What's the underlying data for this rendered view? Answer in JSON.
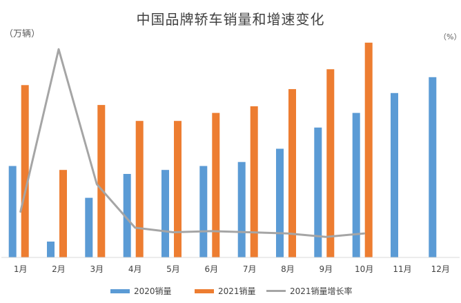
{
  "chart_data": {
    "type": "bar",
    "title": "中国品牌轿车销量和增速变化",
    "ylabel_left": "（万辆）",
    "ylabel_right": "（%）",
    "categories": [
      "1月",
      "2月",
      "3月",
      "4月",
      "5月",
      "6月",
      "7月",
      "8月",
      "9月",
      "10月",
      "11月",
      "12月"
    ],
    "series": [
      {
        "name": "2020销量",
        "kind": "bar",
        "color": "#5b9bd5",
        "values": [
          34.5,
          6.0,
          22.5,
          31.5,
          33.0,
          34.5,
          36.0,
          41.0,
          49.0,
          54.5,
          62.0,
          68.0
        ]
      },
      {
        "name": "2021销量",
        "kind": "bar",
        "color": "#ed7d31",
        "values": [
          65.0,
          33.0,
          57.5,
          51.5,
          51.5,
          54.5,
          57.0,
          63.5,
          71.0,
          81.0,
          null,
          null
        ]
      },
      {
        "name": "2021销量增长率",
        "kind": "line",
        "color": "#a5a5a5",
        "values": [
          20,
          91,
          32,
          13,
          11,
          11.5,
          11,
          10.5,
          9,
          10.5,
          null,
          null
        ]
      }
    ],
    "ylim": [
      0,
      82
    ],
    "y2lim": [
      0,
      95
    ],
    "grid": false,
    "legend_position": "bottom"
  }
}
